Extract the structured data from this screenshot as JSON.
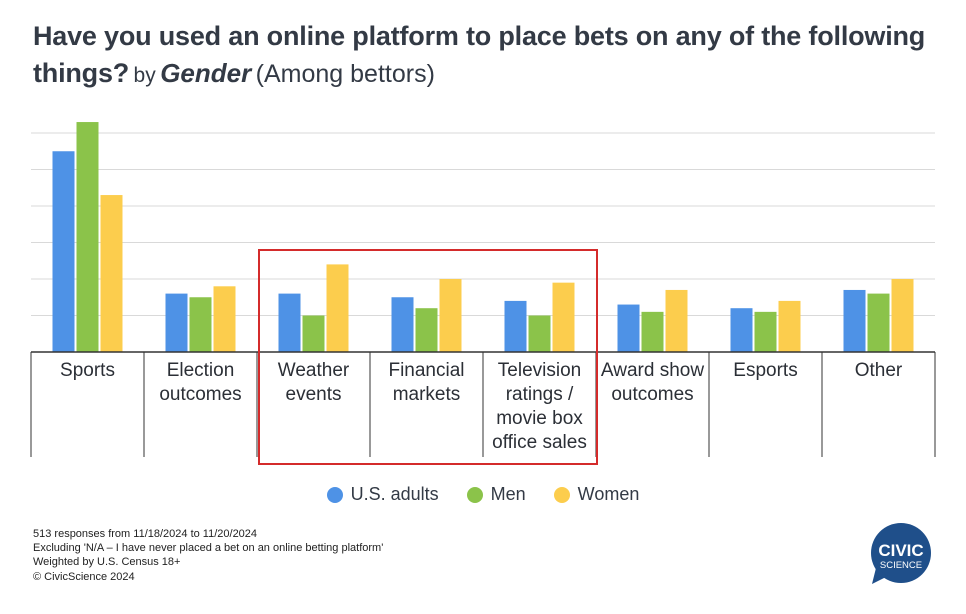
{
  "title": {
    "main": "Have you used an online platform to place bets on any of the following things?",
    "by": "by",
    "dimension": "Gender",
    "subtitle": "(Among bettors)"
  },
  "chart_data": {
    "type": "bar",
    "categories": [
      [
        "Sports"
      ],
      [
        "Election",
        "outcomes"
      ],
      [
        "Weather",
        "events"
      ],
      [
        "Financial",
        "markets"
      ],
      [
        "Television",
        "ratings /",
        "movie box",
        "office sales"
      ],
      [
        "Award show",
        "outcomes"
      ],
      [
        "Esports"
      ],
      [
        "Other"
      ]
    ],
    "series": [
      {
        "name": "U.S. adults",
        "color": "#4e92e6",
        "values": [
          55,
          16,
          16,
          15,
          14,
          13,
          12,
          17
        ]
      },
      {
        "name": "Men",
        "color": "#8bc34a",
        "values": [
          63,
          15,
          10,
          12,
          10,
          11,
          11,
          16
        ]
      },
      {
        "name": "Women",
        "color": "#fccd4d",
        "values": [
          43,
          18,
          24,
          20,
          19,
          17,
          14,
          20
        ]
      }
    ],
    "ylim": [
      0,
      60
    ],
    "y_tick_labels_visible": false,
    "grid": true,
    "legend_position": "bottom",
    "highlighted_categories": [
      2,
      3,
      4
    ],
    "highlight_color": "#d42b2b"
  },
  "legend": {
    "items": [
      {
        "label": "U.S. adults",
        "color": "#4e92e6"
      },
      {
        "label": "Men",
        "color": "#8bc34a"
      },
      {
        "label": "Women",
        "color": "#fccd4d"
      }
    ]
  },
  "footnotes": [
    "513 responses from 11/18/2024 to 11/20/2024",
    "Excluding 'N/A – I have never placed a bet on an online betting platform'",
    "Weighted by U.S. Census 18+",
    "© CivicScience 2024"
  ],
  "logo": {
    "line1": "CIVIC",
    "line2": "SCIENCE",
    "color": "#1f4f8a"
  }
}
